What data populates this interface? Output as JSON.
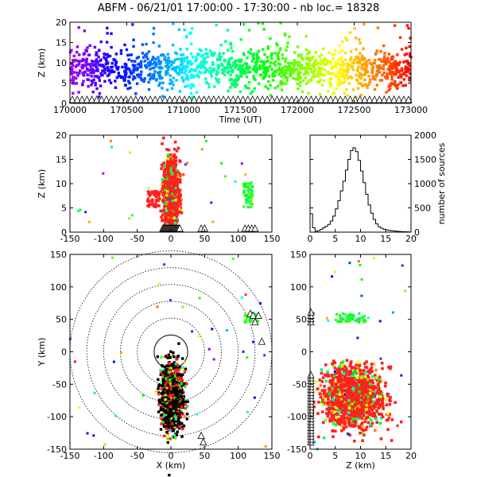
{
  "title": "ABFM - 06/21/01 17:00:00 - 17:30:00 - nb loc.=  18328",
  "colors": {
    "axis": "#000000",
    "lightning_main": "#ff2020",
    "station_marker": "#000000"
  },
  "chart_data": [
    {
      "type": "scatter",
      "panel": "time-height",
      "xlabel": "Time (UT)",
      "ylabel": "Z (km)",
      "xlim": [
        170000,
        173000
      ],
      "ylim": [
        0,
        20
      ],
      "xticks": [
        "170000",
        "170500",
        "171000",
        "171500",
        "172000",
        "172500",
        "173000"
      ],
      "yticks": [
        "0",
        "5",
        "10",
        "15",
        "20"
      ],
      "color_mapping": "rainbow by time",
      "dense_band_km": [
        5,
        12
      ]
    },
    {
      "type": "scatter",
      "panel": "x-height",
      "xlabel": "",
      "ylabel": "Z (km)",
      "xlim": [
        -150,
        150
      ],
      "ylim": [
        0,
        20
      ],
      "xticks": [
        "-150",
        "-100",
        "-50",
        "0",
        "50",
        "100",
        "150"
      ],
      "yticks": [
        "0",
        "5",
        "10",
        "15",
        "20"
      ],
      "main_cluster_x_km": [
        -12,
        12
      ],
      "secondary_cluster_x_km": [
        108,
        122
      ]
    },
    {
      "type": "line",
      "panel": "height-histogram",
      "xlabel": "",
      "ylabel": "number of sources",
      "xlim": [
        0,
        20
      ],
      "ylim": [
        0,
        2000
      ],
      "xticks": [
        "0",
        "5",
        "10",
        "15",
        "20"
      ],
      "yticks": [
        "0",
        "500",
        "1000",
        "1500",
        "2000"
      ],
      "x": [
        0,
        0.5,
        1,
        1.5,
        2,
        2.5,
        3,
        3.5,
        4,
        4.5,
        5,
        5.5,
        6,
        6.5,
        7,
        7.5,
        8,
        8.5,
        9,
        9.5,
        10,
        10.5,
        11,
        11.5,
        12,
        12.5,
        13,
        13.5,
        14,
        14.5,
        15,
        15.5,
        16,
        16.5,
        17,
        17.5,
        18,
        18.5,
        19,
        19.5,
        20
      ],
      "values": [
        380,
        90,
        20,
        30,
        60,
        90,
        120,
        160,
        230,
        330,
        480,
        650,
        850,
        1050,
        1280,
        1500,
        1680,
        1740,
        1660,
        1480,
        1260,
        1020,
        780,
        560,
        390,
        260,
        170,
        110,
        80,
        60,
        45,
        35,
        28,
        22,
        18,
        14,
        10,
        8,
        6,
        4,
        2
      ]
    },
    {
      "type": "scatter",
      "panel": "plan-view",
      "xlabel": "X (km)",
      "ylabel": "Y (km)",
      "xlim": [
        -150,
        150
      ],
      "ylim": [
        -150,
        150
      ],
      "xticks": [
        "-150",
        "-100",
        "-50",
        "0",
        "50",
        "100",
        "150"
      ],
      "yticks": [
        "-150",
        "-100",
        "-50",
        "0",
        "50",
        "100",
        "150"
      ],
      "range_rings_km": [
        25,
        50,
        75,
        100,
        125,
        150
      ]
    },
    {
      "type": "scatter",
      "panel": "height-y",
      "xlabel": "Z (km)",
      "ylabel": "",
      "xlim": [
        0,
        20
      ],
      "ylim": [
        -150,
        150
      ],
      "xticks": [
        "0",
        "5",
        "10",
        "15",
        "20"
      ],
      "yticks": [
        "-150",
        "-100",
        "-50",
        "0",
        "50",
        "100",
        "150"
      ]
    }
  ]
}
